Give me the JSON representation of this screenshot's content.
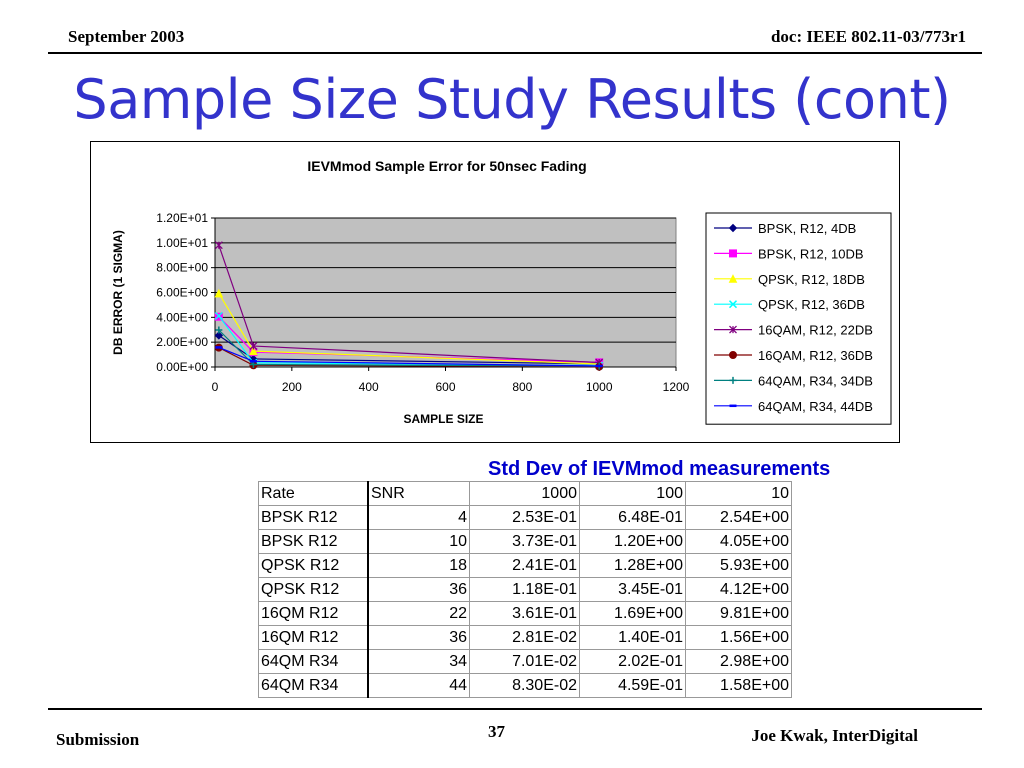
{
  "header": {
    "date": "September 2003",
    "doc": "doc: IEEE 802.11-03/773r1"
  },
  "title": "Sample Size Study Results (cont)",
  "chart_data": {
    "type": "line",
    "title": "IEVMmod Sample Error for 50nsec Fading",
    "xlabel": "SAMPLE SIZE",
    "ylabel": "DB ERROR  (1 SIGMA)",
    "xlim": [
      0,
      1200
    ],
    "ylim": [
      0,
      12
    ],
    "x_ticks": [
      0,
      200,
      400,
      600,
      800,
      1000,
      1200
    ],
    "x_tick_labels": [
      "0",
      "200",
      "400",
      "600",
      "800",
      "1000",
      "1200"
    ],
    "y_ticks": [
      0,
      2,
      4,
      6,
      8,
      10,
      12
    ],
    "y_tick_labels": [
      "0.00E+00",
      "2.00E+00",
      "4.00E+00",
      "6.00E+00",
      "8.00E+00",
      "1.00E+01",
      "1.20E+01"
    ],
    "grid": "horizontal",
    "plot_background": "#c0c0c0",
    "legend_position": "right",
    "x": [
      10,
      100,
      1000
    ],
    "series": [
      {
        "name": "BPSK, R12, 4DB",
        "values": [
          2.54,
          0.648,
          0.253
        ],
        "color": "#000080",
        "marker": "diamond"
      },
      {
        "name": "BPSK, R12, 10DB",
        "values": [
          4.05,
          1.2,
          0.373
        ],
        "color": "#ff00ff",
        "marker": "square"
      },
      {
        "name": "QPSK, R12, 18DB",
        "values": [
          5.93,
          1.28,
          0.241
        ],
        "color": "#ffff00",
        "marker": "triangle"
      },
      {
        "name": "QPSK, R12, 36DB",
        "values": [
          4.12,
          0.345,
          0.118
        ],
        "color": "#00ffff",
        "marker": "x"
      },
      {
        "name": "16QAM, R12, 22DB",
        "values": [
          9.81,
          1.69,
          0.361
        ],
        "color": "#800080",
        "marker": "star"
      },
      {
        "name": "16QAM, R12, 36DB",
        "values": [
          1.56,
          0.14,
          0.0281
        ],
        "color": "#800000",
        "marker": "circle"
      },
      {
        "name": "64QAM, R34, 34DB",
        "values": [
          2.98,
          0.202,
          0.0701
        ],
        "color": "#008080",
        "marker": "plus"
      },
      {
        "name": "64QAM, R34, 44DB",
        "values": [
          1.58,
          0.459,
          0.083
        ],
        "color": "#0000ff",
        "marker": "dash"
      }
    ]
  },
  "table": {
    "caption": "Std Dev of IEVMmod measurements",
    "headers": [
      "Rate",
      "SNR",
      "1000",
      "100",
      "10"
    ],
    "rows": [
      [
        "BPSK R12",
        "4",
        "2.53E-01",
        "6.48E-01",
        "2.54E+00"
      ],
      [
        "BPSK R12",
        "10",
        "3.73E-01",
        "1.20E+00",
        "4.05E+00"
      ],
      [
        "QPSK R12",
        "18",
        "2.41E-01",
        "1.28E+00",
        "5.93E+00"
      ],
      [
        "QPSK R12",
        "36",
        "1.18E-01",
        "3.45E-01",
        "4.12E+00"
      ],
      [
        "16QM R12",
        "22",
        "3.61E-01",
        "1.69E+00",
        "9.81E+00"
      ],
      [
        "16QM R12",
        "36",
        "2.81E-02",
        "1.40E-01",
        "1.56E+00"
      ],
      [
        "64QM R34",
        "34",
        "7.01E-02",
        "2.02E-01",
        "2.98E+00"
      ],
      [
        "64QM R34",
        "44",
        "8.30E-02",
        "4.59E-01",
        "1.58E+00"
      ]
    ]
  },
  "footer": {
    "left": "Submission",
    "page": "37",
    "right": "Joe Kwak, InterDigital"
  }
}
